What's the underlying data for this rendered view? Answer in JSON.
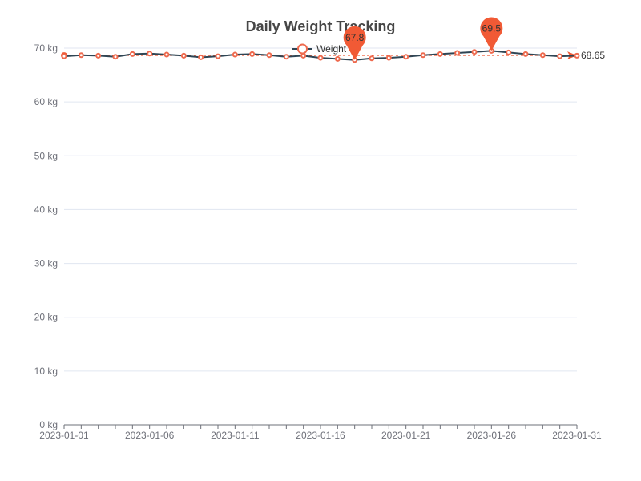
{
  "chart_data": {
    "type": "line",
    "title": "Daily Weight Tracking",
    "legend": {
      "entries": [
        "Weight"
      ],
      "placement": "top-center"
    },
    "series": [
      {
        "name": "Weight",
        "x": [
          "2023-01-01",
          "2023-01-02",
          "2023-01-03",
          "2023-01-04",
          "2023-01-05",
          "2023-01-06",
          "2023-01-07",
          "2023-01-08",
          "2023-01-09",
          "2023-01-10",
          "2023-01-11",
          "2023-01-12",
          "2023-01-13",
          "2023-01-14",
          "2023-01-15",
          "2023-01-16",
          "2023-01-17",
          "2023-01-18",
          "2023-01-19",
          "2023-01-20",
          "2023-01-21",
          "2023-01-22",
          "2023-01-23",
          "2023-01-24",
          "2023-01-25",
          "2023-01-26",
          "2023-01-27",
          "2023-01-28",
          "2023-01-29",
          "2023-01-30",
          "2023-01-31"
        ],
        "values": [
          68.5,
          68.7,
          68.6,
          68.4,
          68.9,
          69.0,
          68.8,
          68.6,
          68.3,
          68.5,
          68.8,
          68.9,
          68.7,
          68.4,
          68.6,
          68.2,
          68.0,
          67.8,
          68.1,
          68.2,
          68.4,
          68.7,
          68.9,
          69.1,
          69.3,
          69.5,
          69.2,
          68.9,
          68.7,
          68.5,
          68.6
        ]
      }
    ],
    "xticks": [
      "2023-01-01",
      "2023-01-06",
      "2023-01-11",
      "2023-01-16",
      "2023-01-21",
      "2023-01-26",
      "2023-01-31"
    ],
    "ylim": [
      0,
      70
    ],
    "yticks": [
      0,
      10,
      20,
      30,
      40,
      50,
      60,
      70
    ],
    "yunit": "kg",
    "grid": true,
    "mark_points": [
      {
        "label": "67.8",
        "x": "2023-01-18",
        "value": 67.8
      },
      {
        "label": "69.5",
        "x": "2023-01-26",
        "value": 69.5
      }
    ],
    "mark_line": {
      "type": "average",
      "label": "68.65",
      "value": 68.65
    },
    "colors": {
      "line": "#2f4554",
      "marker": "#ee6a4e",
      "pin": "#f15a35",
      "grid": "#e0e6f1",
      "axis": "#6e7079"
    }
  }
}
